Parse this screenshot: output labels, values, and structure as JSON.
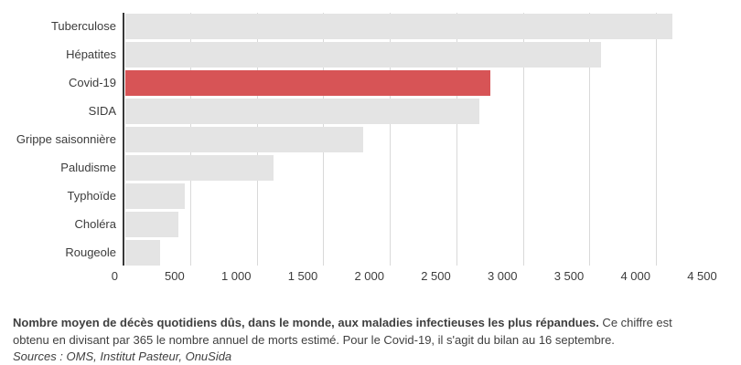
{
  "chart_data": {
    "type": "bar",
    "orientation": "horizontal",
    "categories": [
      "Tuberculose",
      "Hépatites",
      "Covid-19",
      "SIDA",
      "Grippe saisonnière",
      "Paludisme",
      "Typhoïde",
      "Choléra",
      "Rougeole"
    ],
    "values": [
      4110,
      3575,
      2740,
      2660,
      1790,
      1110,
      450,
      400,
      260
    ],
    "highlight_index": 2,
    "highlight_category": "Covid-19",
    "xlim": [
      0,
      4500
    ],
    "x_ticks": [
      0,
      500,
      1000,
      1500,
      2000,
      2500,
      3000,
      3500,
      4000,
      4500
    ],
    "x_tick_labels": [
      "0",
      "500",
      "1 000",
      "1 500",
      "2 000",
      "2 500",
      "3 000",
      "3 500",
      "4 000",
      "4 500"
    ],
    "gridline_values": [
      500,
      1000,
      1500,
      2000,
      2500,
      3000,
      3500,
      4000
    ],
    "grid": "vertical",
    "legend": "none",
    "title": "",
    "xlabel": "",
    "ylabel": "",
    "colors": {
      "bar_default": "#e4e4e4",
      "bar_highlight": "#d75456",
      "axis": "#383838",
      "gridline": "#d9d9d9",
      "text": "#3c3c3c"
    }
  },
  "caption": {
    "bold": "Nombre moyen de décès quotidiens dûs, dans le monde, aux maladies infectieuses les plus répandues.",
    "regular": " Ce chiffre est obtenu en divisant par 365 le nombre annuel de morts estimé. Pour le Covid-19, il s'agit du bilan au 16 septembre.",
    "sources": "Sources : OMS, Institut Pasteur, OnuSida"
  }
}
